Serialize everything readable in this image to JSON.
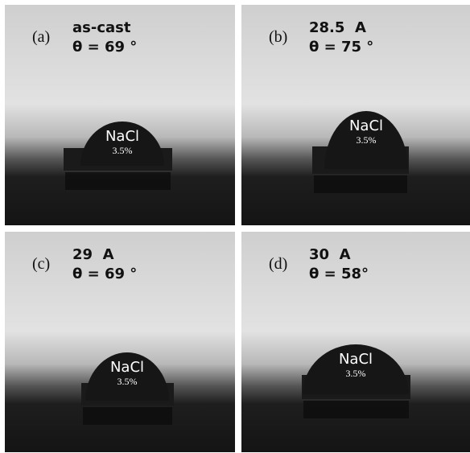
{
  "panels": [
    {
      "label": "(a)",
      "title": "as-cast",
      "angle": "θ = 69 °",
      "drop": "NaCl",
      "concentration": "3.5%"
    },
    {
      "label": "(b)",
      "title": "28.5  A",
      "angle": "θ = 75 °",
      "drop": "NaCl",
      "concentration": "3.5%"
    },
    {
      "label": "(c)",
      "title": "29  A",
      "angle": "θ = 69 °",
      "drop": "NaCl",
      "concentration": "3.5%"
    },
    {
      "label": "(d)",
      "title": "30  A",
      "angle": "θ = 58°",
      "drop": "NaCl",
      "concentration": "3.5%"
    }
  ]
}
